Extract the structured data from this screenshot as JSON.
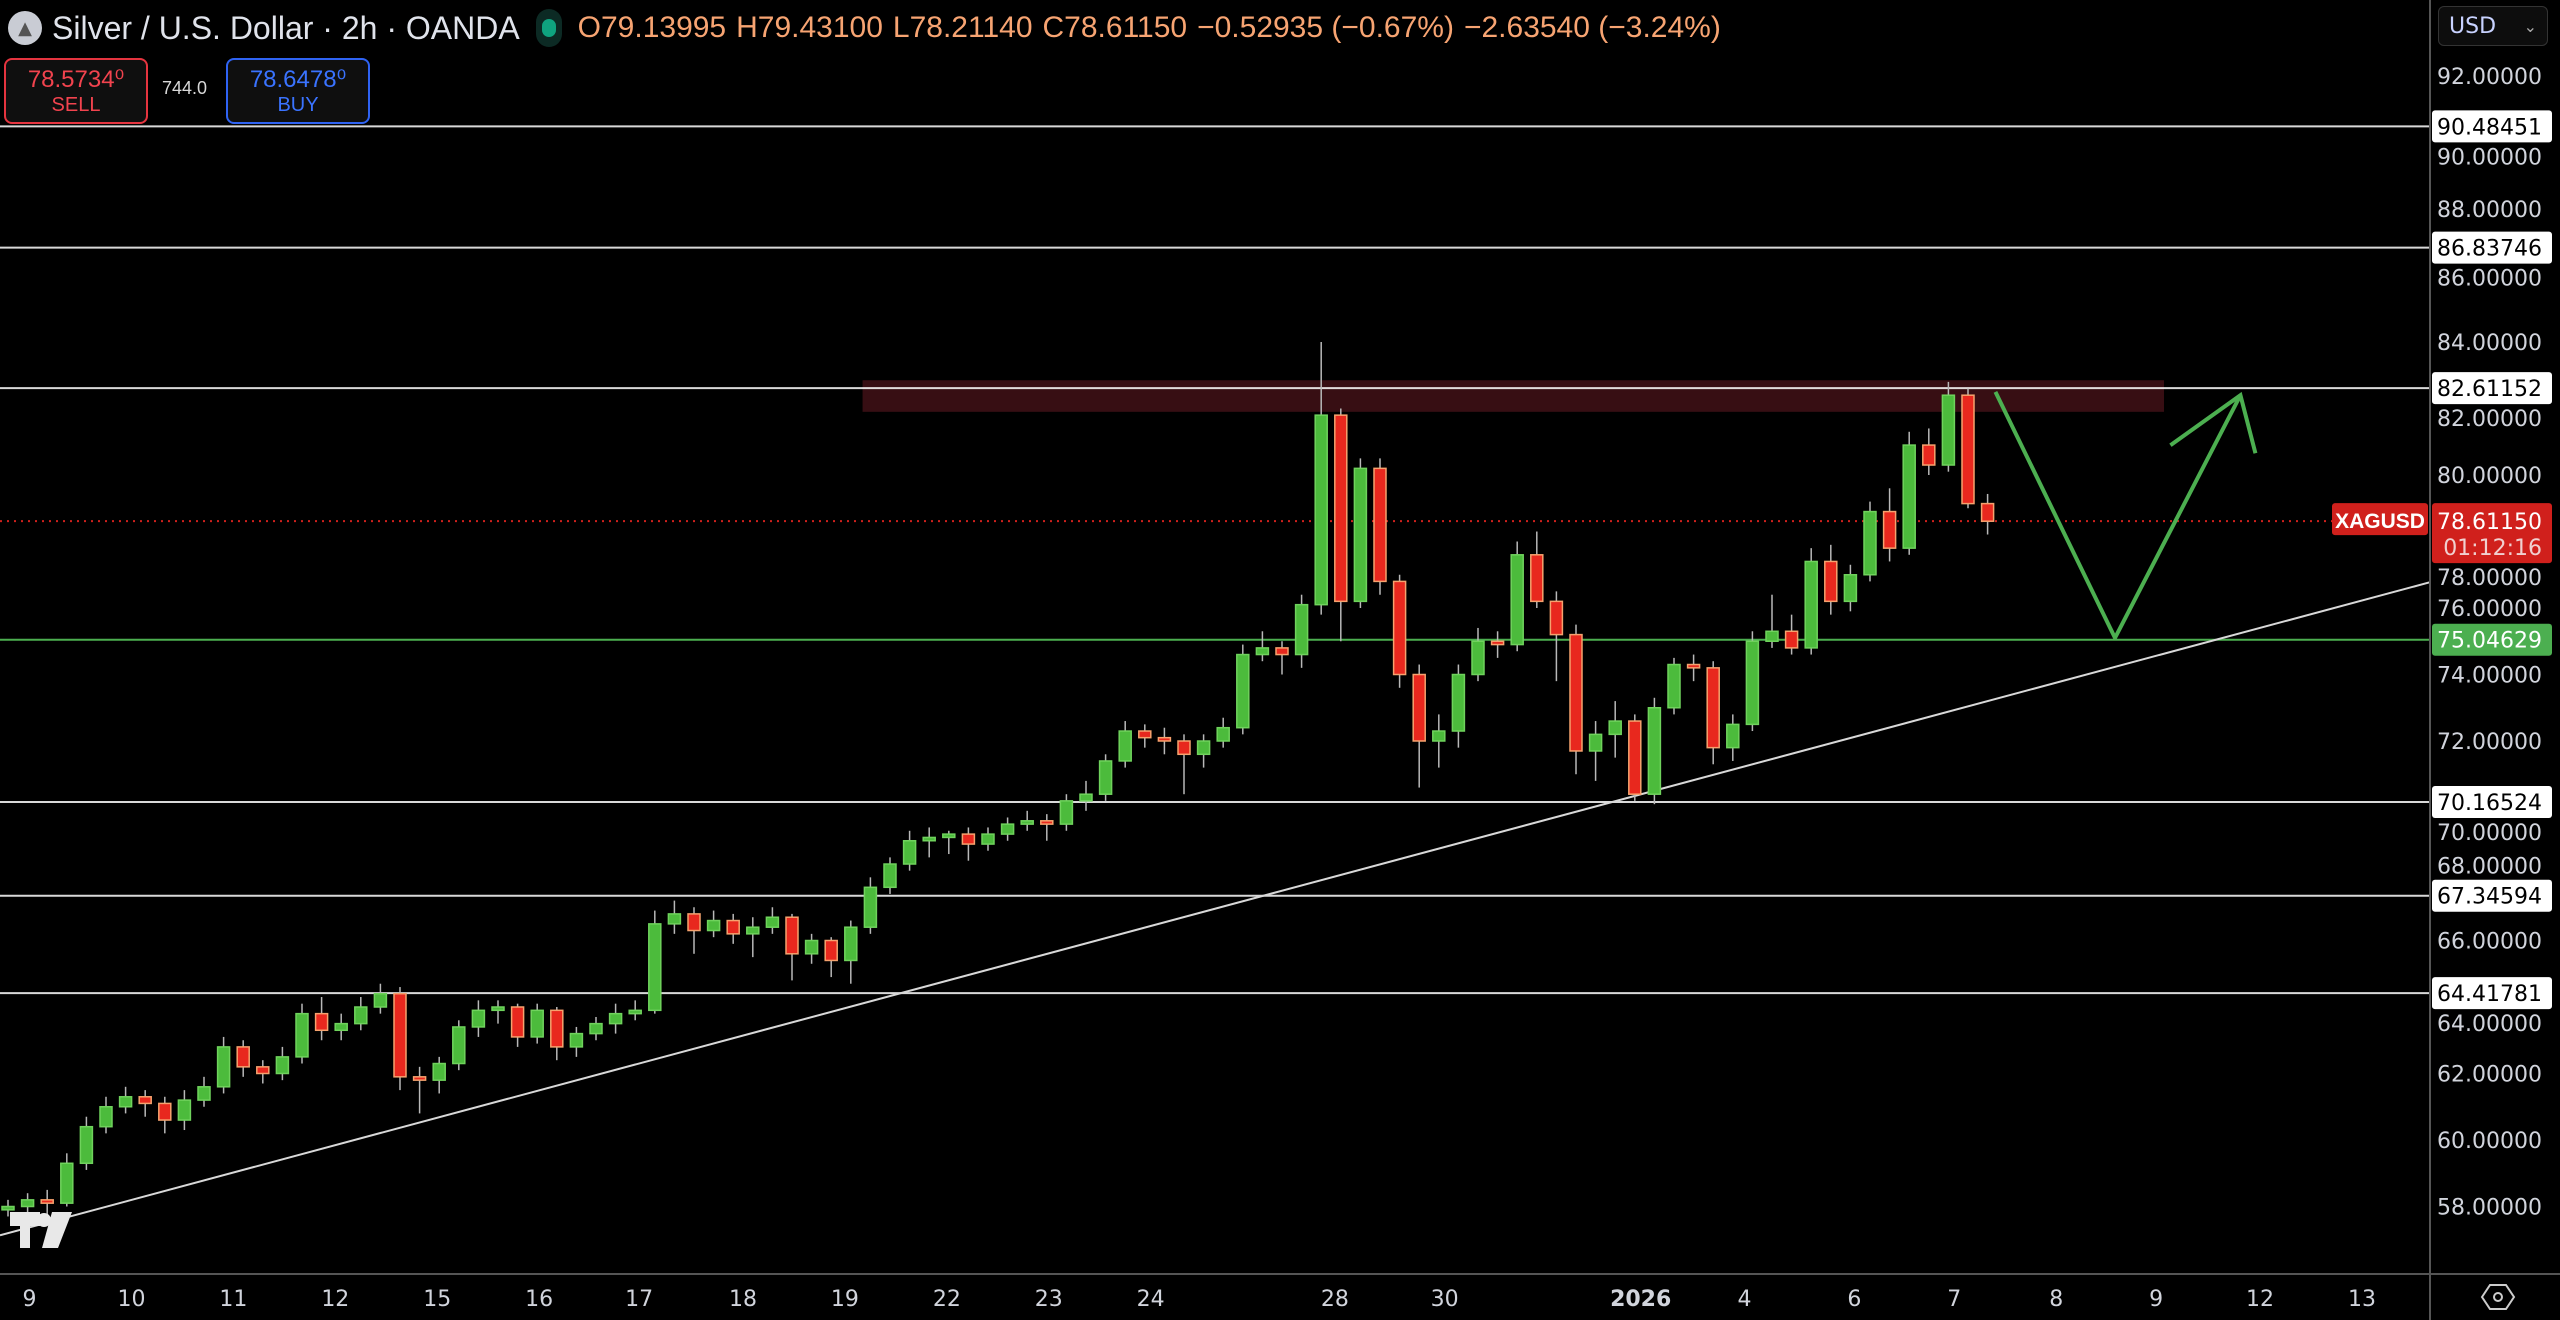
{
  "header": {
    "symbol_title": "Silver / U.S. Dollar · 2h · OANDA",
    "ohlc": {
      "o": "O79.13995",
      "h": "H79.43100",
      "l": "L78.21140",
      "c": "C78.61150",
      "change": "−0.52935 (−0.67%)",
      "change2": "−2.63540 (−3.24%)"
    },
    "market_status_color": "#0fa37f"
  },
  "trade": {
    "sell_price": "78.5734⁰",
    "sell_label": "SELL",
    "spread": "744.0",
    "buy_price": "78.6478⁰",
    "buy_label": "BUY"
  },
  "currency_selector": {
    "value": "USD"
  },
  "chart_data": {
    "type": "candlestick",
    "symbol": "XAGUSD",
    "interval": "2h",
    "ylim": [
      55.7,
      93.5
    ],
    "y_ticks": [
      "92.00000",
      "90.00000",
      "88.00000",
      "86.00000",
      "84.00000",
      "82.00000",
      "80.00000",
      "78.00000",
      "76.00000",
      "74.00000",
      "72.00000",
      "70.00000",
      "68.00000",
      "66.00000",
      "64.00000",
      "62.00000",
      "60.00000",
      "58.00000"
    ],
    "x_ticks": [
      {
        "label": "9",
        "bar": 1.1
      },
      {
        "label": "10",
        "bar": 6.3
      },
      {
        "label": "11",
        "bar": 11.5
      },
      {
        "label": "12",
        "bar": 16.7
      },
      {
        "label": "15",
        "bar": 21.9
      },
      {
        "label": "16",
        "bar": 27.1
      },
      {
        "label": "17",
        "bar": 32.2
      },
      {
        "label": "18",
        "bar": 37.5
      },
      {
        "label": "19",
        "bar": 42.7
      },
      {
        "label": "22",
        "bar": 47.9
      },
      {
        "label": "23",
        "bar": 53.1
      },
      {
        "label": "24",
        "bar": 58.3
      },
      {
        "label": "28",
        "bar": 67.7
      },
      {
        "label": "30",
        "bar": 73.3
      },
      {
        "label": "2026",
        "bar": 83.3,
        "bold": true
      },
      {
        "label": "4",
        "bar": 88.6
      },
      {
        "label": "6",
        "bar": 94.2
      },
      {
        "label": "7",
        "bar": 99.3
      },
      {
        "label": "8",
        "bar": 104.5
      },
      {
        "label": "9",
        "bar": 109.6
      },
      {
        "label": "12",
        "bar": 114.9
      },
      {
        "label": "13",
        "bar": 120.1
      }
    ],
    "candles_ohlc": [
      [
        57.9,
        58.2,
        57.7,
        58.0
      ],
      [
        58.0,
        58.4,
        57.8,
        58.2
      ],
      [
        58.2,
        58.5,
        57.6,
        58.1
      ],
      [
        58.1,
        59.6,
        58.0,
        59.3
      ],
      [
        59.3,
        60.7,
        59.1,
        60.4
      ],
      [
        60.4,
        61.3,
        60.2,
        61.0
      ],
      [
        61.0,
        61.6,
        60.8,
        61.3
      ],
      [
        61.3,
        61.5,
        60.7,
        61.1
      ],
      [
        61.1,
        61.3,
        60.2,
        60.6
      ],
      [
        60.6,
        61.5,
        60.3,
        61.2
      ],
      [
        61.2,
        61.9,
        61.0,
        61.6
      ],
      [
        61.6,
        63.1,
        61.4,
        62.8
      ],
      [
        62.8,
        63.0,
        61.9,
        62.2
      ],
      [
        62.2,
        62.4,
        61.7,
        62.0
      ],
      [
        62.0,
        62.8,
        61.8,
        62.5
      ],
      [
        62.5,
        64.1,
        62.3,
        63.8
      ],
      [
        63.8,
        64.3,
        63.0,
        63.3
      ],
      [
        63.3,
        63.8,
        63.0,
        63.5
      ],
      [
        63.5,
        64.3,
        63.3,
        64.0
      ],
      [
        64.0,
        64.7,
        63.8,
        64.4
      ],
      [
        64.4,
        64.6,
        61.5,
        61.9
      ],
      [
        61.9,
        62.2,
        60.8,
        61.8
      ],
      [
        61.8,
        62.5,
        61.4,
        62.3
      ],
      [
        62.3,
        63.6,
        62.1,
        63.4
      ],
      [
        63.4,
        64.2,
        63.1,
        63.9
      ],
      [
        63.9,
        64.2,
        63.5,
        64.0
      ],
      [
        64.0,
        64.1,
        62.8,
        63.1
      ],
      [
        63.1,
        64.1,
        62.9,
        63.9
      ],
      [
        63.9,
        64.0,
        62.4,
        62.8
      ],
      [
        62.8,
        63.4,
        62.5,
        63.2
      ],
      [
        63.2,
        63.7,
        63.0,
        63.5
      ],
      [
        63.5,
        64.1,
        63.2,
        63.8
      ],
      [
        63.8,
        64.2,
        63.6,
        63.9
      ],
      [
        63.9,
        66.9,
        63.8,
        66.5
      ],
      [
        66.5,
        67.2,
        66.2,
        66.8
      ],
      [
        66.8,
        67.0,
        65.6,
        66.3
      ],
      [
        66.3,
        66.9,
        66.1,
        66.6
      ],
      [
        66.6,
        66.8,
        65.9,
        66.2
      ],
      [
        66.2,
        66.7,
        65.5,
        66.4
      ],
      [
        66.4,
        67.0,
        66.2,
        66.7
      ],
      [
        66.7,
        66.8,
        64.8,
        65.6
      ],
      [
        65.6,
        66.2,
        65.3,
        66.0
      ],
      [
        66.0,
        66.1,
        64.9,
        65.4
      ],
      [
        65.4,
        66.6,
        64.7,
        66.4
      ],
      [
        66.4,
        67.9,
        66.2,
        67.6
      ],
      [
        67.6,
        68.5,
        67.4,
        68.3
      ],
      [
        68.3,
        69.3,
        68.1,
        69.0
      ],
      [
        69.0,
        69.4,
        68.5,
        69.1
      ],
      [
        69.1,
        69.3,
        68.6,
        69.2
      ],
      [
        69.2,
        69.4,
        68.4,
        68.9
      ],
      [
        68.9,
        69.4,
        68.7,
        69.2
      ],
      [
        69.2,
        69.7,
        69.0,
        69.5
      ],
      [
        69.5,
        69.9,
        69.3,
        69.6
      ],
      [
        69.6,
        69.8,
        69.0,
        69.5
      ],
      [
        69.5,
        70.4,
        69.3,
        70.2
      ],
      [
        70.2,
        70.8,
        69.9,
        70.4
      ],
      [
        70.4,
        71.6,
        70.2,
        71.4
      ],
      [
        71.4,
        72.6,
        71.2,
        72.3
      ],
      [
        72.3,
        72.5,
        71.8,
        72.1
      ],
      [
        72.1,
        72.4,
        71.6,
        72.0
      ],
      [
        72.0,
        72.2,
        70.4,
        71.6
      ],
      [
        71.6,
        72.2,
        71.2,
        72.0
      ],
      [
        72.0,
        72.7,
        71.8,
        72.4
      ],
      [
        72.4,
        74.9,
        72.2,
        74.6
      ],
      [
        74.6,
        75.3,
        74.4,
        74.8
      ],
      [
        74.8,
        75.0,
        74.0,
        74.6
      ],
      [
        74.6,
        76.4,
        74.2,
        76.1
      ],
      [
        76.1,
        84.0,
        75.8,
        81.8
      ],
      [
        81.8,
        82.0,
        75.0,
        76.2
      ],
      [
        76.2,
        80.5,
        76.0,
        80.2
      ],
      [
        80.2,
        80.5,
        76.4,
        76.8
      ],
      [
        76.8,
        77.0,
        73.6,
        74.0
      ],
      [
        74.0,
        74.3,
        70.6,
        72.0
      ],
      [
        72.0,
        72.8,
        71.2,
        72.3
      ],
      [
        72.3,
        74.3,
        71.8,
        74.0
      ],
      [
        74.0,
        75.4,
        73.8,
        75.0
      ],
      [
        75.0,
        75.3,
        74.5,
        74.9
      ],
      [
        74.9,
        78.0,
        74.7,
        77.6
      ],
      [
        77.6,
        78.3,
        76.0,
        76.2
      ],
      [
        76.2,
        76.5,
        73.8,
        75.2
      ],
      [
        75.2,
        75.5,
        71.0,
        71.7
      ],
      [
        71.7,
        72.6,
        70.8,
        72.2
      ],
      [
        72.2,
        73.2,
        71.5,
        72.6
      ],
      [
        72.6,
        72.8,
        70.2,
        70.4
      ],
      [
        70.4,
        73.3,
        70.1,
        73.0
      ],
      [
        73.0,
        74.5,
        72.8,
        74.3
      ],
      [
        74.3,
        74.6,
        73.8,
        74.2
      ],
      [
        74.2,
        74.4,
        71.3,
        71.8
      ],
      [
        71.8,
        72.8,
        71.4,
        72.5
      ],
      [
        72.5,
        75.3,
        72.3,
        75.0
      ],
      [
        75.0,
        76.4,
        74.8,
        75.3
      ],
      [
        75.3,
        75.8,
        74.6,
        74.8
      ],
      [
        74.8,
        77.8,
        74.6,
        77.4
      ],
      [
        77.4,
        77.9,
        75.8,
        76.2
      ],
      [
        76.2,
        77.3,
        75.9,
        77.0
      ],
      [
        77.0,
        79.2,
        76.8,
        78.9
      ],
      [
        78.9,
        79.6,
        77.4,
        77.8
      ],
      [
        77.8,
        81.3,
        77.6,
        80.9
      ],
      [
        80.9,
        81.4,
        80.0,
        80.3
      ],
      [
        80.3,
        82.8,
        80.1,
        82.4
      ],
      [
        82.4,
        82.6,
        79.0,
        79.14
      ],
      [
        79.14,
        79.43,
        78.21,
        78.61
      ]
    ],
    "horizontal_levels": [
      {
        "price": 90.48451,
        "label": "90.48451",
        "color": "#ffffff"
      },
      {
        "price": 86.83746,
        "label": "86.83746",
        "color": "#ffffff"
      },
      {
        "price": 82.61152,
        "label": "82.61152",
        "color": "#ffffff"
      },
      {
        "price": 75.04629,
        "label": "75.04629",
        "color": "#4caf50"
      },
      {
        "price": 70.16524,
        "label": "70.16524",
        "color": "#ffffff"
      },
      {
        "price": 67.34594,
        "label": "67.34594",
        "color": "#ffffff"
      },
      {
        "price": 64.41781,
        "label": "64.41781",
        "color": "#ffffff"
      }
    ],
    "resistance_zone": {
      "top": 82.85,
      "bottom": 81.9,
      "from_bar": 43.6,
      "to_bar": 110,
      "color": "#3a0f14"
    },
    "trendline": [
      {
        "bar": 0,
        "price": 57.2
      },
      {
        "bar": 101,
        "price": 73.2
      }
    ],
    "projection_arrow": [
      {
        "bar": 101.4,
        "price": 82.5
      },
      {
        "bar": 107.5,
        "price": 75.1
      },
      {
        "bar": 113.9,
        "price": 82.4
      }
    ],
    "last_price": {
      "price": 78.6115,
      "label": "78.61150",
      "countdown": "01:12:16",
      "symbol_tag": "XAGUSD",
      "color": "#d0201c"
    },
    "colors": {
      "up": "#4cbb3c",
      "down": "#e8281e",
      "down_border": "#f5a26e",
      "grid_bg": "#000000"
    }
  }
}
